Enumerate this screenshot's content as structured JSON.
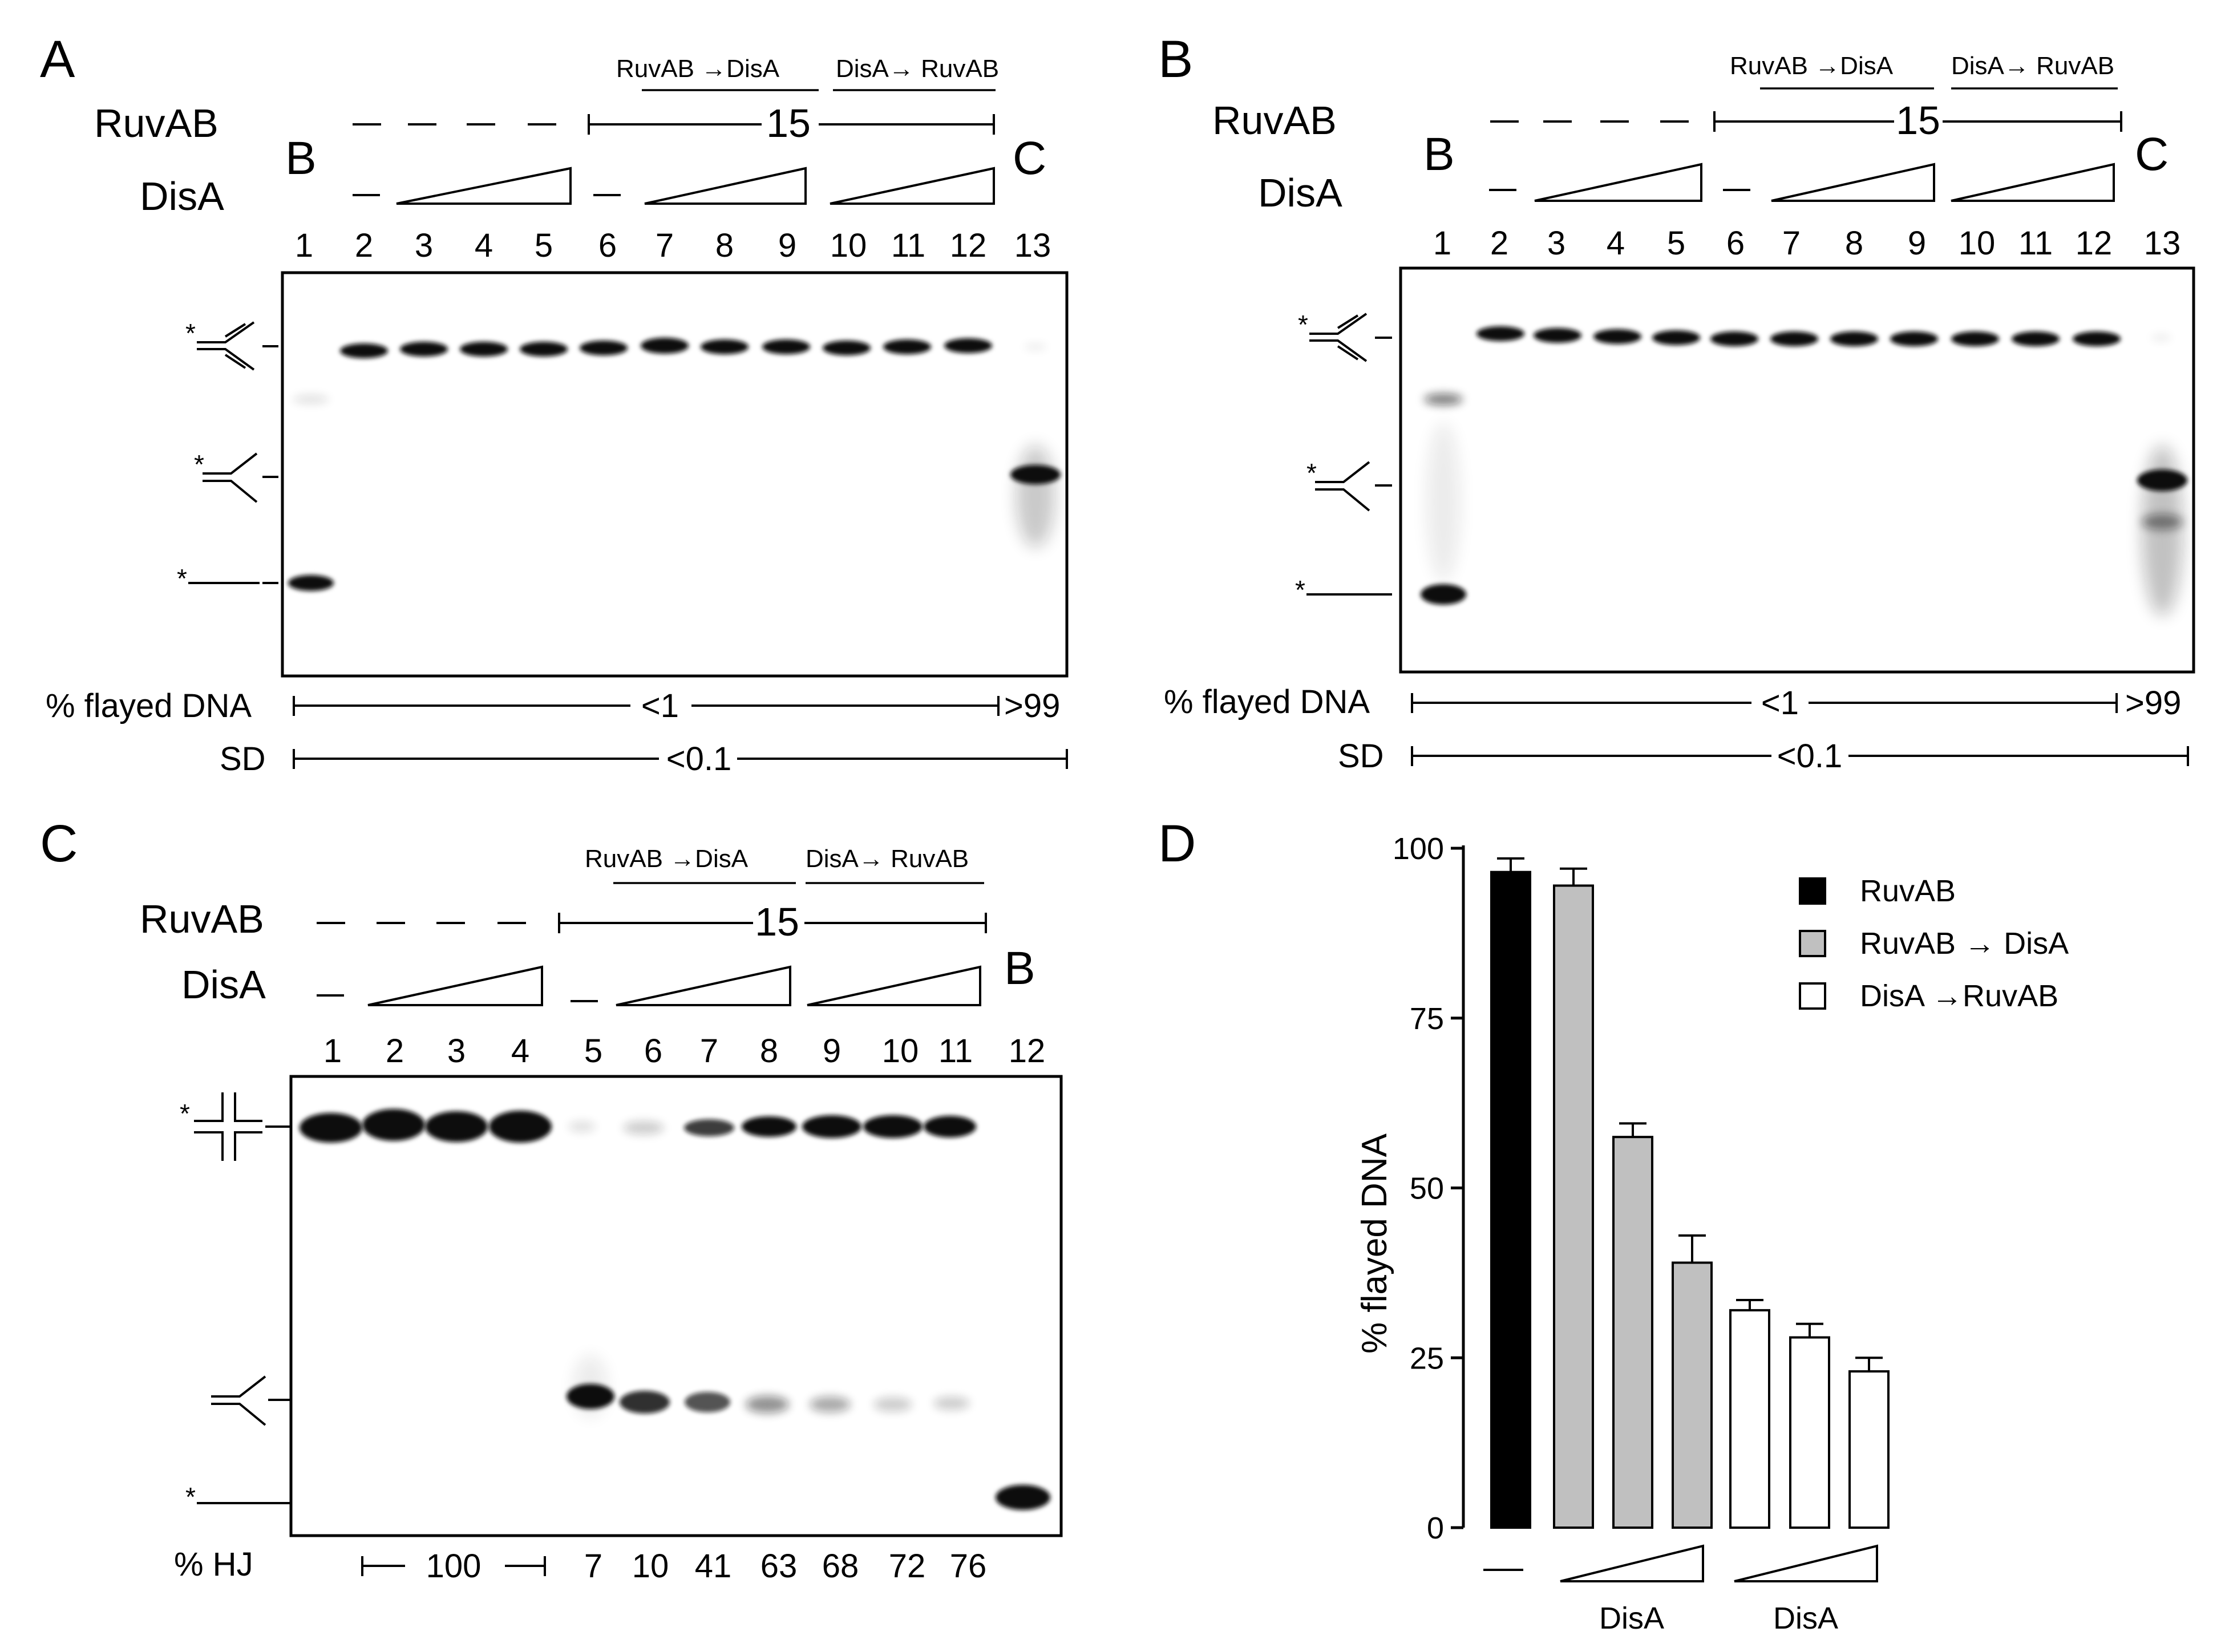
{
  "panels": {
    "A": {
      "letter": "A",
      "ruvab_label": "RuvAB",
      "disa_label": "DisA",
      "dash": "—",
      "order_left": "RuvAB →DisA",
      "order_right": "DisA→ RuvAB",
      "ruvab_time": "15",
      "left_control": "B",
      "right_control": "C",
      "lanes": [
        "1",
        "2",
        "3",
        "4",
        "5",
        "6",
        "7",
        "8",
        "9",
        "10",
        "11",
        "12",
        "13"
      ],
      "quant_label": "% flayed DNA",
      "quant_main": "<1",
      "quant_last": ">99",
      "sd_label": "SD",
      "sd_value": "<0.1"
    },
    "B": {
      "letter": "B",
      "ruvab_label": "RuvAB",
      "disa_label": "DisA",
      "dash": "—",
      "order_left": "RuvAB →DisA",
      "order_right": "DisA→ RuvAB",
      "ruvab_time": "15",
      "left_control": "B",
      "right_control": "C",
      "lanes": [
        "1",
        "2",
        "3",
        "4",
        "5",
        "6",
        "7",
        "8",
        "9",
        "10",
        "11",
        "12",
        "13"
      ],
      "quant_label": "% flayed DNA",
      "quant_main": "<1",
      "quant_last": ">99",
      "sd_label": "SD",
      "sd_value": "<0.1"
    },
    "C": {
      "letter": "C",
      "ruvab_label": "RuvAB",
      "disa_label": "DisA",
      "dash": "—",
      "order_left": "RuvAB →DisA",
      "order_right": "DisA→ RuvAB",
      "ruvab_time": "15",
      "right_control": "B",
      "lanes": [
        "1",
        "2",
        "3",
        "4",
        "5",
        "6",
        "7",
        "8",
        "9",
        "10",
        "11",
        "12"
      ],
      "hj_label": "% HJ",
      "hj_bracket_value": "100",
      "hj_values": [
        "7",
        "10",
        "41",
        "63",
        "68",
        "72",
        "76"
      ]
    },
    "D": {
      "letter": "D",
      "dash": "—",
      "disa_label_1": "DisA",
      "disa_label_2": "DisA"
    }
  },
  "colors": {
    "black": "#000000",
    "gray": "#c0c0c0",
    "white": "#ffffff"
  },
  "chart_data": {
    "type": "bar",
    "title": "",
    "xlabel": "",
    "ylabel": "% flayed DNA",
    "ylim": [
      0,
      100
    ],
    "yticks": [
      "0",
      "25",
      "50",
      "75",
      "100"
    ],
    "legend": [
      {
        "name": "RuvAB",
        "color": "#000000"
      },
      {
        "name": "RuvAB → DisA",
        "color": "#c0c0c0"
      },
      {
        "name": "DisA →RuvAB",
        "color": "#ffffff"
      }
    ],
    "legend_position": "top-right",
    "bars": [
      {
        "series": "RuvAB",
        "value": 96.5,
        "error": 2
      },
      {
        "series": "RuvAB → DisA",
        "value": 94.5,
        "error": 2.5
      },
      {
        "series": "RuvAB → DisA",
        "value": 57.5,
        "error": 2
      },
      {
        "series": "RuvAB → DisA",
        "value": 39,
        "error": 4
      },
      {
        "series": "DisA →RuvAB",
        "value": 32,
        "error": 1.5
      },
      {
        "series": "DisA →RuvAB",
        "value": 28,
        "error": 2
      },
      {
        "series": "DisA →RuvAB",
        "value": 23,
        "error": 2
      }
    ]
  }
}
